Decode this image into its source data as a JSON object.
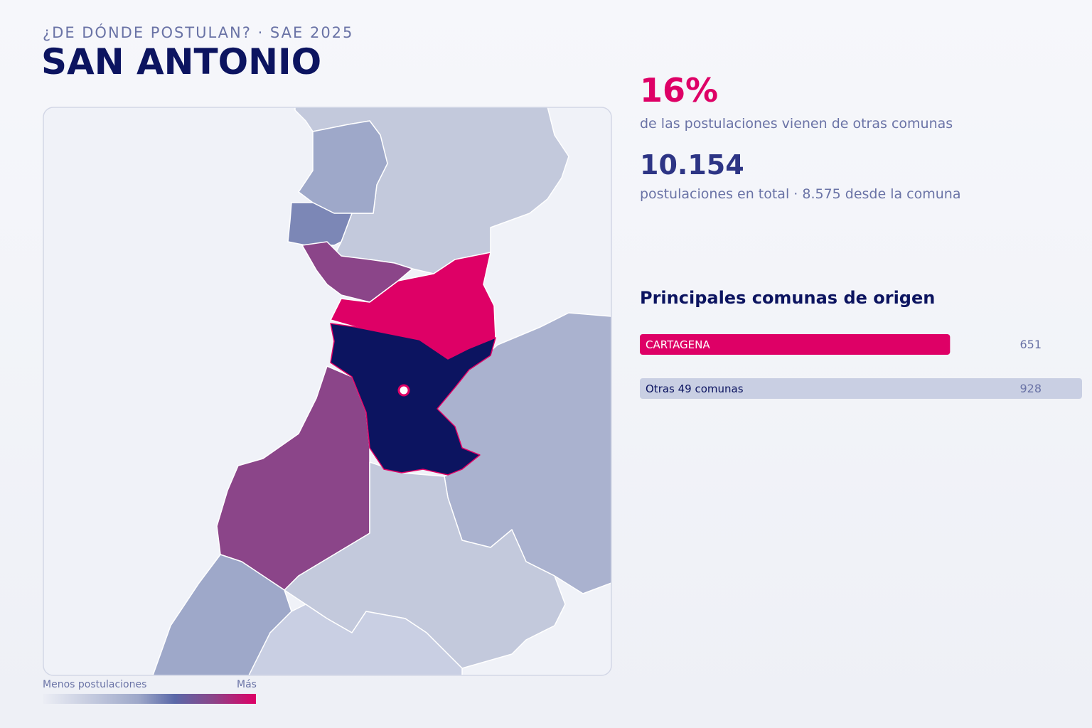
{
  "header": {
    "kicker": "¿DE DÓNDE POSTULAN? · SAE 2025",
    "title": "SAN ANTONIO"
  },
  "stats": [
    {
      "value": "16%",
      "label": "de las postulaciones vienen de otras comunas"
    },
    {
      "value": "10.154",
      "label": "postulaciones en total · 8.575 desde la comuna"
    }
  ],
  "origins": {
    "title": "Principales comunas de origen",
    "items": [
      {
        "name": "CARTAGENA",
        "value": 651,
        "color": "#de0066"
      },
      {
        "name": "Otras 49 comunas",
        "value": 928,
        "color": "#c9cfe3"
      }
    ]
  },
  "legend": {
    "low": "Menos postulaciones",
    "high": "Más"
  }
}
